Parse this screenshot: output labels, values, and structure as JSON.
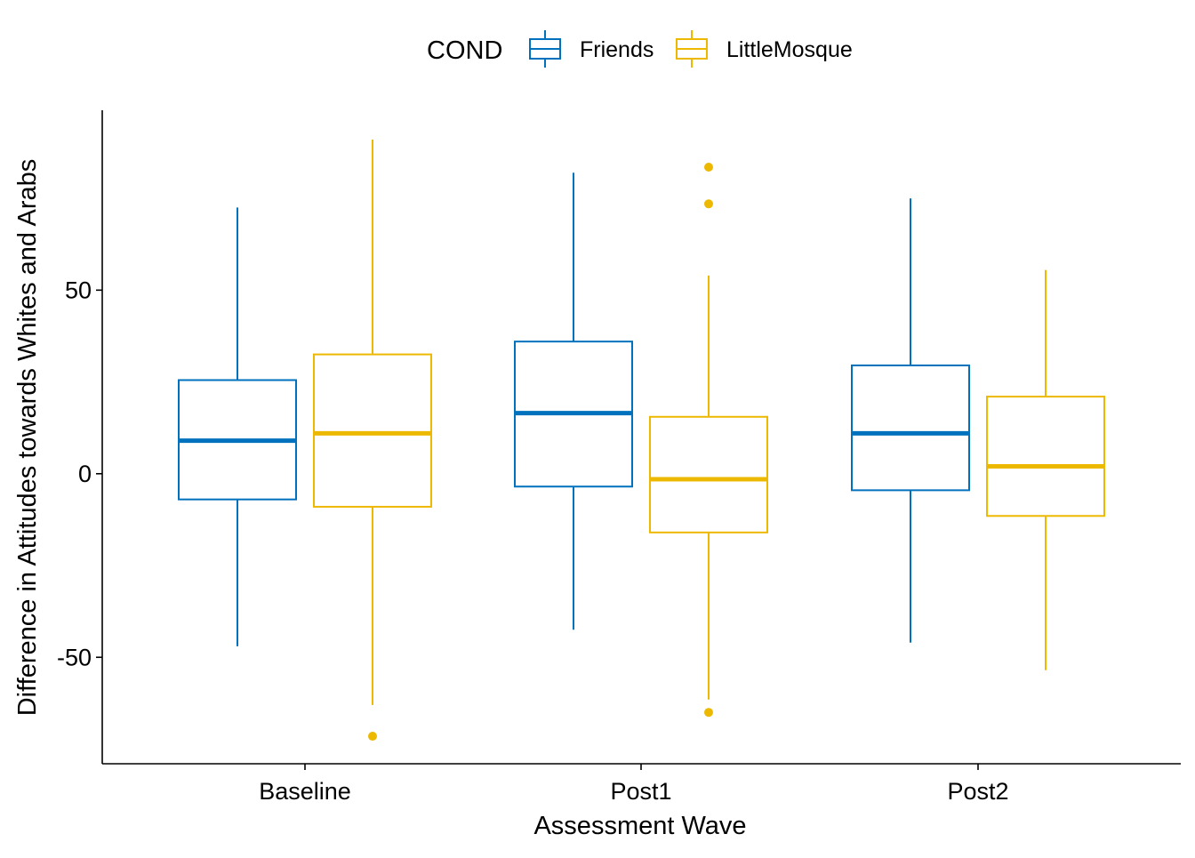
{
  "chart_data": {
    "type": "boxplot",
    "xlabel": "Assessment Wave",
    "ylabel": "Difference in Attitudes towards Whites and Arabs",
    "ylim": [
      -79,
      99
    ],
    "yticks": [
      -50,
      0,
      50
    ],
    "categories": [
      "Baseline",
      "Post1",
      "Post2"
    ],
    "legend": {
      "title": "COND",
      "position": "top"
    },
    "grid": false,
    "series": [
      {
        "name": "Friends",
        "color": "#0072BD",
        "boxes": [
          {
            "category": "Baseline",
            "whisker_low": -47,
            "q1": -7,
            "median": 9,
            "q3": 25.5,
            "whisker_high": 72.5,
            "outliers": []
          },
          {
            "category": "Post1",
            "whisker_low": -42.5,
            "q1": -3.5,
            "median": 16.5,
            "q3": 36,
            "whisker_high": 82,
            "outliers": []
          },
          {
            "category": "Post2",
            "whisker_low": -46,
            "q1": -4.5,
            "median": 11,
            "q3": 29.5,
            "whisker_high": 75,
            "outliers": []
          }
        ]
      },
      {
        "name": "LittleMosque",
        "color": "#EDB800",
        "boxes": [
          {
            "category": "Baseline",
            "whisker_low": -63,
            "q1": -9,
            "median": 11,
            "q3": 32.5,
            "whisker_high": 91,
            "outliers": [
              -71.5
            ]
          },
          {
            "category": "Post1",
            "whisker_low": -61.5,
            "q1": -16,
            "median": -1.5,
            "q3": 15.5,
            "whisker_high": 54,
            "outliers": [
              83.5,
              73.5,
              -65
            ]
          },
          {
            "category": "Post2",
            "whisker_low": -53.5,
            "q1": -11.5,
            "median": 2,
            "q3": 21,
            "whisker_high": 55.5,
            "outliers": []
          }
        ]
      }
    ]
  }
}
